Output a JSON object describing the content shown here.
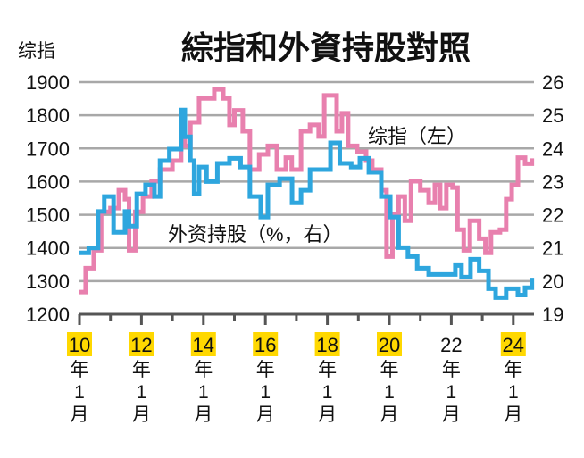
{
  "chart_data": {
    "type": "line",
    "title": "綜指和外資持股對照",
    "left_axis_label": "综指",
    "x_unit": "year",
    "xlim": [
      2010.0,
      2024.7
    ],
    "x_ticks_minor": [
      2010,
      2011,
      2012,
      2013,
      2014,
      2015,
      2016,
      2017,
      2018,
      2019,
      2020,
      2021,
      2022,
      2023,
      2024
    ],
    "x_tick_labels": [
      {
        "value": 2010,
        "label": "10",
        "highlight": true
      },
      {
        "value": 2012,
        "label": "12",
        "highlight": true
      },
      {
        "value": 2014,
        "label": "14",
        "highlight": true
      },
      {
        "value": 2016,
        "label": "16",
        "highlight": true
      },
      {
        "value": 2018,
        "label": "18",
        "highlight": true
      },
      {
        "value": 2020,
        "label": "20",
        "highlight": true
      },
      {
        "value": 2022,
        "label": "22",
        "highlight": false
      },
      {
        "value": 2024,
        "label": "24",
        "highlight": true
      }
    ],
    "x_tick_suffix": [
      "年",
      "1",
      "月"
    ],
    "y_left": {
      "lim": [
        1200,
        1900
      ],
      "ticks": [
        "1200",
        "1300",
        "1400",
        "1500",
        "1600",
        "1700",
        "1800",
        "1900"
      ]
    },
    "y_right": {
      "lim": [
        19,
        26
      ],
      "ticks": [
        "19",
        "20",
        "21",
        "22",
        "23",
        "24",
        "25",
        "26"
      ]
    },
    "grid": true,
    "colors": {
      "index": "#e880ae",
      "holding": "#2ea6de",
      "index_label": "#d5327f",
      "holding_label": "#2a9fd8",
      "highlight": "#ffd800",
      "grid": "#a8a8a8",
      "axis": "#555555"
    },
    "series": [
      {
        "name": "综指（左）",
        "axis": "left",
        "color_key": "index",
        "x": [
          2010.0,
          2010.2,
          2010.46,
          2010.7,
          2011.0,
          2011.27,
          2011.47,
          2011.6,
          2011.8,
          2012.05,
          2012.33,
          2012.6,
          2013.0,
          2013.28,
          2013.4,
          2013.58,
          2013.86,
          2014.35,
          2014.64,
          2014.84,
          2015.0,
          2015.27,
          2015.5,
          2015.8,
          2016.08,
          2016.37,
          2016.66,
          2016.85,
          2017.15,
          2017.44,
          2017.72,
          2017.9,
          2018.15,
          2018.3,
          2018.47,
          2018.67,
          2018.96,
          2019.25,
          2019.45,
          2019.74,
          2019.91,
          2020.1,
          2020.3,
          2020.5,
          2020.7,
          2021.0,
          2021.27,
          2021.47,
          2021.64,
          2021.84,
          2022.04,
          2022.2,
          2022.4,
          2022.6,
          2022.9,
          2023.1,
          2023.28,
          2023.57,
          2023.77,
          2023.95,
          2024.15,
          2024.38,
          2024.6
        ],
        "values": [
          1267,
          1339,
          1393,
          1509,
          1520,
          1574,
          1547,
          1393,
          1509,
          1555,
          1601,
          1636,
          1663,
          1752,
          1708,
          1779,
          1851,
          1878,
          1851,
          1771,
          1815,
          1752,
          1636,
          1682,
          1708,
          1636,
          1672,
          1636,
          1752,
          1771,
          1736,
          1860,
          1860,
          1752,
          1806,
          1708,
          1690,
          1663,
          1636,
          1574,
          1374,
          1501,
          1555,
          1482,
          1601,
          1574,
          1536,
          1590,
          1520,
          1590,
          1582,
          1455,
          1393,
          1482,
          1428,
          1385,
          1447,
          1455,
          1547,
          1590,
          1672,
          1654,
          1670
        ]
      },
      {
        "name": "外资持股（%，右）",
        "axis": "right",
        "color_key": "holding",
        "x": [
          2010.0,
          2010.3,
          2010.6,
          2010.8,
          2011.1,
          2011.47,
          2011.6,
          2011.85,
          2012.13,
          2012.42,
          2012.6,
          2012.9,
          2013.28,
          2013.4,
          2013.58,
          2013.7,
          2013.86,
          2014.1,
          2014.45,
          2014.84,
          2015.2,
          2015.5,
          2015.85,
          2016.08,
          2016.46,
          2016.86,
          2017.15,
          2017.44,
          2017.8,
          2018.1,
          2018.4,
          2018.77,
          2019.05,
          2019.34,
          2019.74,
          2020.03,
          2020.3,
          2020.6,
          2020.9,
          2021.27,
          2021.76,
          2022.13,
          2022.33,
          2022.62,
          2022.9,
          2023.2,
          2023.43,
          2023.77,
          2024.15,
          2024.38,
          2024.6
        ],
        "values": [
          20.85,
          21.0,
          22.1,
          22.55,
          21.47,
          22.1,
          21.66,
          22.63,
          22.9,
          22.55,
          23.63,
          23.98,
          25.16,
          24.35,
          23.63,
          22.63,
          23.44,
          23.0,
          23.55,
          23.7,
          23.44,
          22.55,
          21.93,
          22.9,
          23.09,
          22.36,
          22.74,
          23.36,
          23.36,
          24.17,
          23.55,
          23.44,
          23.7,
          23.28,
          22.55,
          21.93,
          21.01,
          20.74,
          20.39,
          20.2,
          20.2,
          20.47,
          20.12,
          20.66,
          20.31,
          19.77,
          19.5,
          19.77,
          19.58,
          19.8,
          20.1
        ]
      }
    ]
  }
}
